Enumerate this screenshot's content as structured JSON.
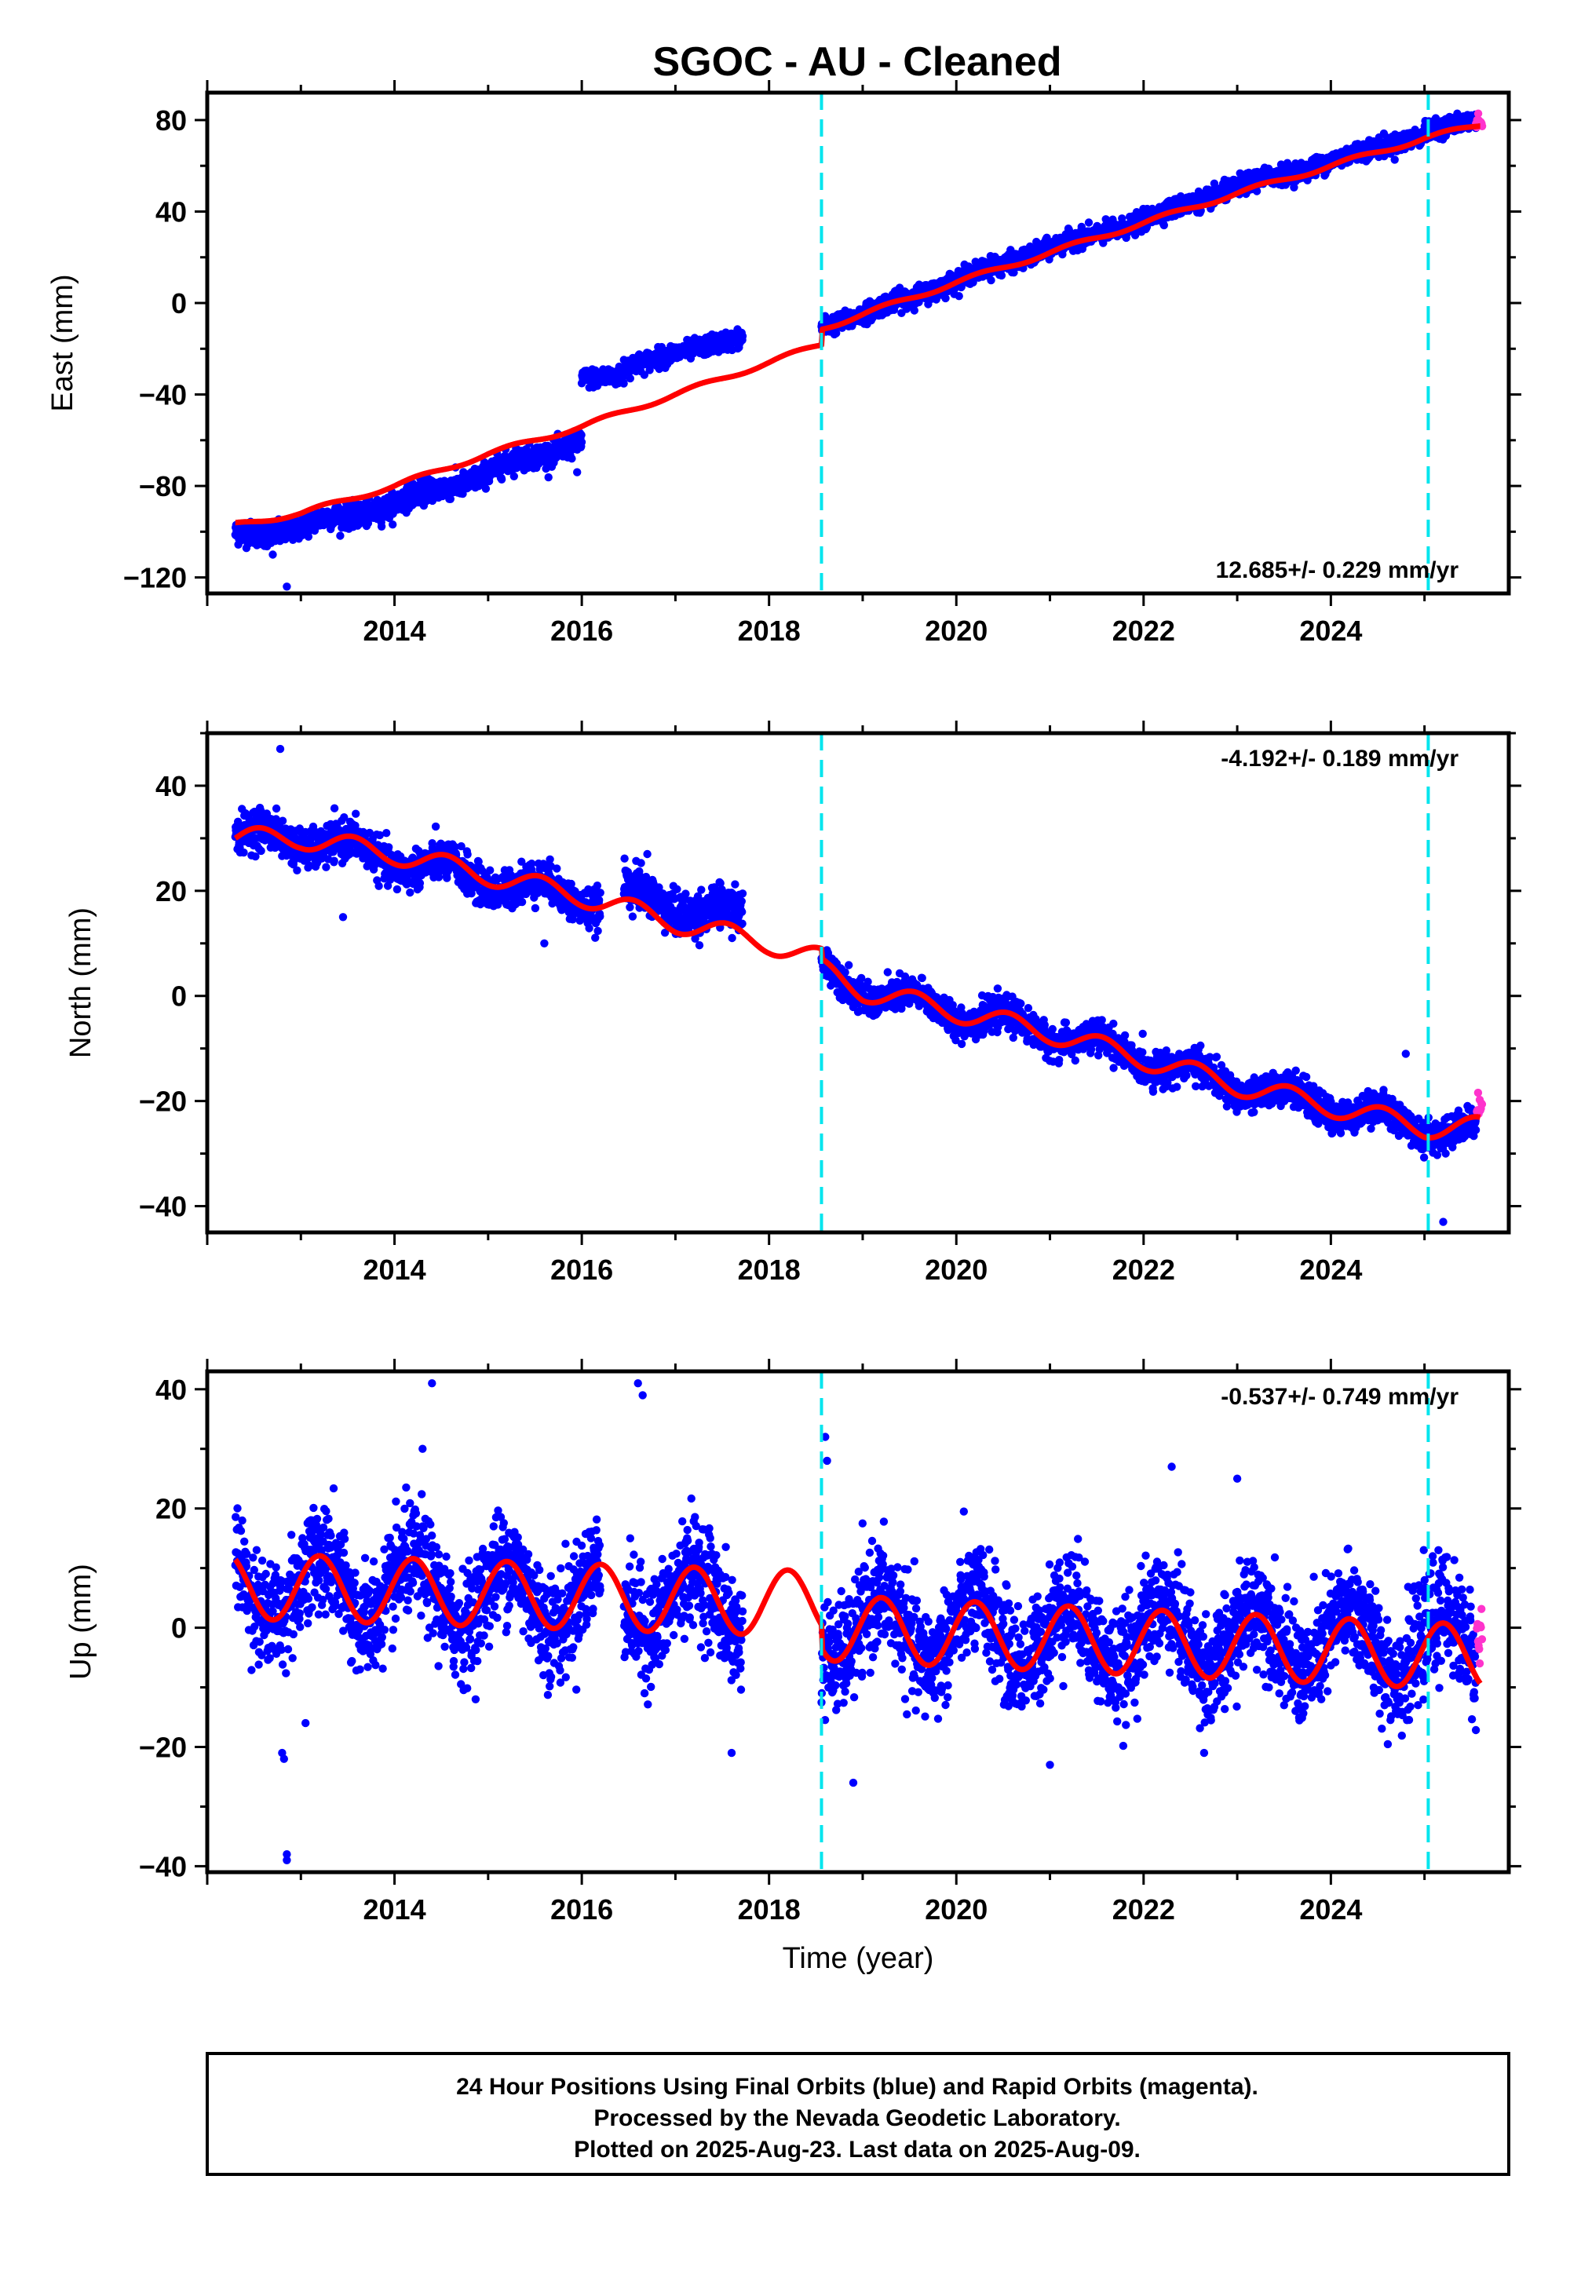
{
  "figure": {
    "title": "SGOC  - AU - Cleaned",
    "footer_lines": [
      "24 Hour Positions Using Final Orbits (blue) and Rapid Orbits (magenta).",
      "Processed by the Nevada Geodetic Laboratory.",
      "Plotted on 2025-Aug-23. Last data on 2025-Aug-09."
    ]
  },
  "colors": {
    "final_orbits": "#0000ff",
    "rapid_orbits": "#ff33cc",
    "model_fit": "#ff0000",
    "event_lines": "#00e5ee"
  },
  "chart_data": [
    {
      "type": "scatter",
      "id": "east",
      "ylabel": "East (mm)",
      "xlabel": "",
      "xlim": [
        2012.0,
        2025.9
      ],
      "ylim": [
        -127,
        92
      ],
      "x_ticks": [
        2014,
        2016,
        2018,
        2020,
        2022,
        2024
      ],
      "y_ticks": [
        -120,
        -80,
        -40,
        0,
        40,
        80
      ],
      "rate_text": "12.685+/- 0.229 mm/yr",
      "rate_position": "bottom-right",
      "event_lines_x": [
        2018.56,
        2025.04
      ],
      "series": [
        {
          "role": "final_orbits",
          "segments": [
            {
              "x_start": 2012.3,
              "x_end": 2016.0,
              "y_at": [
                [
                  2012.3,
                  -102
                ],
                [
                  2013.0,
                  -98
                ],
                [
                  2014.0,
                  -88
                ],
                [
                  2015.0,
                  -74
                ],
                [
                  2016.0,
                  -60
                ]
              ],
              "scatter": 2.5,
              "annual_amp": 1.5
            },
            {
              "x_start": 2016.0,
              "x_end": 2016.45,
              "y_at": [
                [
                  2016.0,
                  -33
                ],
                [
                  2016.45,
                  -32
                ]
              ],
              "scatter": 2.0,
              "annual_amp": 0
            },
            {
              "x_start": 2016.45,
              "x_end": 2017.72,
              "y_at": [
                [
                  2016.45,
                  -28
                ],
                [
                  2017.0,
                  -22
                ],
                [
                  2017.72,
                  -15
                ]
              ],
              "scatter": 2.0,
              "annual_amp": 0
            },
            {
              "x_start": 2018.56,
              "x_end": 2025.55,
              "y_at": [
                [
                  2018.56,
                  -10
                ],
                [
                  2019.0,
                  -5
                ],
                [
                  2020.0,
                  10
                ],
                [
                  2021.0,
                  24
                ],
                [
                  2022.0,
                  36
                ],
                [
                  2023.0,
                  51
                ],
                [
                  2024.0,
                  62
                ],
                [
                  2025.0,
                  74
                ],
                [
                  2025.55,
                  80
                ]
              ],
              "scatter": 2.0,
              "annual_amp": 0.8
            }
          ],
          "outliers": [
            [
              2012.85,
              -124
            ],
            [
              2015.95,
              -74
            ],
            [
              2016.05,
              -32
            ],
            [
              2012.7,
              -110
            ]
          ]
        },
        {
          "role": "rapid_orbits",
          "segments": [
            {
              "x_start": 2025.55,
              "x_end": 2025.62,
              "y_at": [
                [
                  2025.55,
                  79
                ],
                [
                  2025.62,
                  81
                ]
              ],
              "scatter": 1.5,
              "annual_amp": 0
            }
          ]
        }
      ],
      "model": {
        "knots": [
          [
            2012.3,
            -97
          ],
          [
            2013.0,
            -92
          ],
          [
            2014.0,
            -80
          ],
          [
            2015.0,
            -66
          ],
          [
            2016.0,
            -54
          ],
          [
            2017.0,
            -40
          ],
          [
            2018.0,
            -26
          ],
          [
            2018.56,
            -18
          ],
          [
            2018.57,
            -11
          ],
          [
            2019.0,
            -5
          ],
          [
            2020.0,
            9
          ],
          [
            2021.0,
            22
          ],
          [
            2022.0,
            35
          ],
          [
            2023.0,
            48
          ],
          [
            2024.0,
            60
          ],
          [
            2025.0,
            72
          ],
          [
            2025.6,
            78
          ]
        ],
        "annual_amp": 1.0,
        "annual_phase": 0.25
      }
    },
    {
      "type": "scatter",
      "id": "north",
      "ylabel": "North (mm)",
      "xlabel": "",
      "xlim": [
        2012.0,
        2025.9
      ],
      "ylim": [
        -45,
        50
      ],
      "x_ticks": [
        2014,
        2016,
        2018,
        2020,
        2022,
        2024
      ],
      "y_ticks": [
        -40,
        -20,
        0,
        20,
        40
      ],
      "rate_text": "-4.192+/- 0.189 mm/yr",
      "rate_position": "top-right",
      "event_lines_x": [
        2018.56,
        2025.04
      ],
      "series": [
        {
          "role": "final_orbits",
          "segments": [
            {
              "x_start": 2012.3,
              "x_end": 2016.2,
              "y_at": [
                [
                  2012.3,
                  30
                ],
                [
                  2013.0,
                  30
                ],
                [
                  2014.0,
                  26
                ],
                [
                  2015.0,
                  22
                ],
                [
                  2016.2,
                  18
                ]
              ],
              "scatter": 1.8,
              "annual_amp": 2.0
            },
            {
              "x_start": 2016.45,
              "x_end": 2017.72,
              "y_at": [
                [
                  2016.45,
                  20
                ],
                [
                  2017.0,
                  17
                ],
                [
                  2017.72,
                  15
                ]
              ],
              "scatter": 2.0,
              "annual_amp": 1.5
            },
            {
              "x_start": 2018.56,
              "x_end": 2025.55,
              "y_at": [
                [
                  2018.56,
                  5
                ],
                [
                  2019.0,
                  1
                ],
                [
                  2020.0,
                  -3
                ],
                [
                  2021.0,
                  -7
                ],
                [
                  2022.0,
                  -12
                ],
                [
                  2023.0,
                  -17
                ],
                [
                  2024.0,
                  -21
                ],
                [
                  2025.0,
                  -25
                ],
                [
                  2025.55,
                  -26
                ]
              ],
              "scatter": 1.5,
              "annual_amp": 1.8
            }
          ],
          "outliers": [
            [
              2012.78,
              47
            ],
            [
              2013.45,
              15
            ],
            [
              2016.7,
              27
            ],
            [
              2024.8,
              -11
            ],
            [
              2025.2,
              -43
            ],
            [
              2015.6,
              10
            ]
          ]
        },
        {
          "role": "rapid_orbits",
          "segments": [
            {
              "x_start": 2025.56,
              "x_end": 2025.62,
              "y_at": [
                [
                  2025.56,
                  -21
                ],
                [
                  2025.62,
                  -20
                ]
              ],
              "scatter": 1.0,
              "annual_amp": 0
            }
          ]
        }
      ],
      "model": {
        "knots": [
          [
            2012.3,
            30
          ],
          [
            2013.0,
            30
          ],
          [
            2014.0,
            27
          ],
          [
            2015.0,
            23
          ],
          [
            2016.0,
            19
          ],
          [
            2017.0,
            14
          ],
          [
            2018.0,
            10
          ],
          [
            2018.56,
            7
          ],
          [
            2018.57,
            5
          ],
          [
            2019.0,
            1
          ],
          [
            2020.0,
            -3
          ],
          [
            2021.0,
            -7
          ],
          [
            2022.0,
            -12
          ],
          [
            2023.0,
            -17
          ],
          [
            2024.0,
            -21
          ],
          [
            2025.0,
            -25
          ],
          [
            2025.6,
            -25
          ]
        ],
        "annual_amp": 2.0,
        "annual_phase": 0.55
      }
    },
    {
      "type": "scatter",
      "id": "up",
      "ylabel": "Up (mm)",
      "xlabel": "Time (year)",
      "xlim": [
        2012.0,
        2025.9
      ],
      "ylim": [
        -41,
        43
      ],
      "x_ticks": [
        2014,
        2016,
        2018,
        2020,
        2022,
        2024
      ],
      "y_ticks": [
        -40,
        -20,
        0,
        20,
        40
      ],
      "rate_text": "-0.537+/- 0.749 mm/yr",
      "rate_position": "top-right",
      "event_lines_x": [
        2018.56,
        2025.04
      ],
      "series": [
        {
          "role": "final_orbits",
          "segments": [
            {
              "x_start": 2012.3,
              "x_end": 2016.2,
              "y_at": [
                [
                  2012.3,
                  7
                ],
                [
                  2016.2,
                  5
                ]
              ],
              "scatter": 4.5,
              "annual_amp": 5.5
            },
            {
              "x_start": 2016.45,
              "x_end": 2017.72,
              "y_at": [
                [
                  2016.45,
                  5
                ],
                [
                  2017.72,
                  4
                ]
              ],
              "scatter": 4.5,
              "annual_amp": 5.5
            },
            {
              "x_start": 2018.56,
              "x_end": 2025.55,
              "y_at": [
                [
                  2018.56,
                  0
                ],
                [
                  2025.55,
                  -3
                ]
              ],
              "scatter": 4.5,
              "annual_amp": 5.5
            }
          ],
          "outliers": [
            [
              2012.85,
              -38
            ],
            [
              2012.85,
              -39
            ],
            [
              2012.8,
              -21
            ],
            [
              2012.82,
              -22
            ],
            [
              2014.4,
              41
            ],
            [
              2016.6,
              41
            ],
            [
              2016.65,
              39
            ],
            [
              2018.6,
              32
            ],
            [
              2018.62,
              28
            ],
            [
              2014.3,
              30
            ],
            [
              2018.9,
              -26
            ],
            [
              2013.05,
              -16
            ],
            [
              2022.3,
              27
            ],
            [
              2023.0,
              25
            ],
            [
              2017.6,
              -21
            ],
            [
              2021.0,
              -23
            ]
          ]
        },
        {
          "role": "rapid_orbits",
          "segments": [
            {
              "x_start": 2025.56,
              "x_end": 2025.62,
              "y_at": [
                [
                  2025.56,
                  -3
                ],
                [
                  2025.62,
                  -4
                ]
              ],
              "scatter": 4.0,
              "annual_amp": 0
            }
          ]
        }
      ],
      "model": {
        "knots": [
          [
            2012.3,
            7
          ],
          [
            2018.56,
            4
          ],
          [
            2018.57,
            0
          ],
          [
            2025.6,
            -5
          ]
        ],
        "annual_amp": 5.5,
        "annual_phase": 0.2
      }
    }
  ]
}
